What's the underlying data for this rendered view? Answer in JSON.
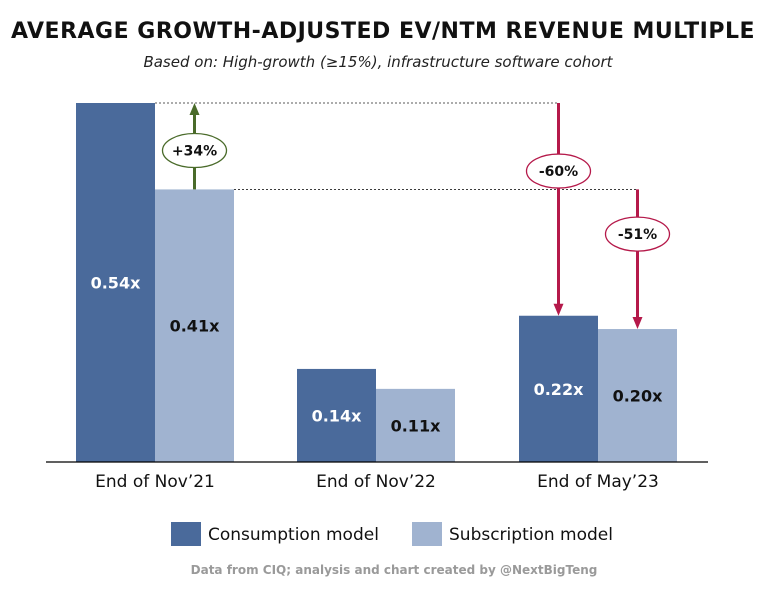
{
  "colors": {
    "consumption": "#4a6a9b",
    "subscription": "#a0b3d0",
    "increase": "#4a6b2a",
    "decrease": "#b5194a"
  },
  "chart_data": {
    "type": "bar",
    "title": "AVERAGE GROWTH-ADJUSTED EV/NTM REVENUE MULTIPLE",
    "subtitle": "Based on: High-growth (≥15%), infrastructure software cohort",
    "categories": [
      "End of Nov’21",
      "End of Nov’22",
      "End of May’23"
    ],
    "series": [
      {
        "name": "Consumption model",
        "values": [
          0.54,
          0.14,
          0.22
        ],
        "labels": [
          "0.54x",
          "0.14x",
          "0.22x"
        ]
      },
      {
        "name": "Subscription model",
        "values": [
          0.41,
          0.11,
          0.2
        ],
        "labels": [
          "0.41x",
          "0.11x",
          "0.20x"
        ]
      }
    ],
    "ylim": [
      0,
      0.54
    ],
    "grid": false,
    "legend": "bottom",
    "annotations": [
      {
        "text": "+34%",
        "kind": "increase",
        "category": 0,
        "from_value": 0.41,
        "to_value": 0.54
      },
      {
        "text": "-60%",
        "kind": "decrease",
        "category": 2,
        "series": 0,
        "from_value": 0.54,
        "to_value": 0.22
      },
      {
        "text": "-51%",
        "kind": "decrease",
        "category": 2,
        "series": 1,
        "from_value": 0.41,
        "to_value": 0.2
      }
    ],
    "source": "Data from CIQ; analysis and chart created by @NextBigTeng"
  }
}
